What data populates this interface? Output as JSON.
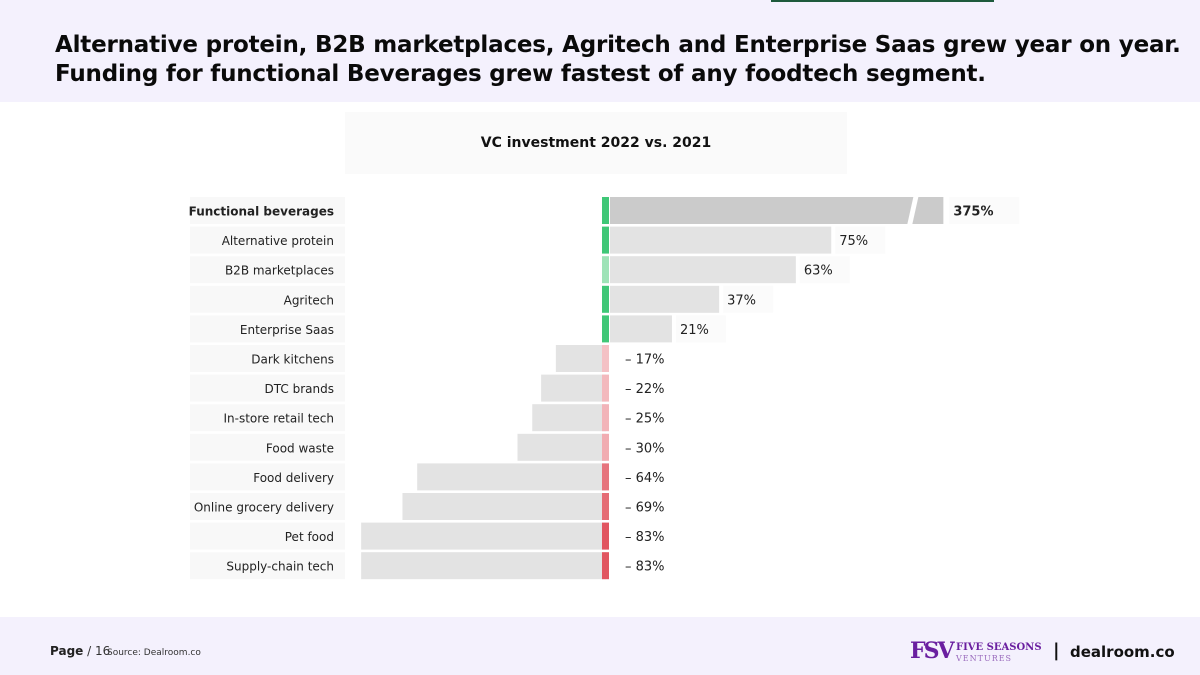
{
  "header": {
    "headline_line1": "Alternative protein, B2B marketplaces, Agritech and Enterprise Saas grew year on year.",
    "headline_line2": "Funding for functional Beverages grew fastest of any foodtech segment."
  },
  "chart_data": {
    "type": "bar",
    "orientation": "horizontal-diverging",
    "title": "VC investment 2022 vs. 2021",
    "categories": [
      "Functional beverages",
      "Alternative protein",
      "B2B marketplaces",
      "Agritech",
      "Enterprise Saas",
      "Dark kitchens",
      "DTC brands",
      "In-store retail tech",
      "Food waste",
      "Food delivery",
      "Online grocery delivery",
      "Pet food",
      "Supply-chain tech"
    ],
    "values": [
      375,
      75,
      63,
      37,
      21,
      -17,
      -22,
      -25,
      -30,
      -64,
      -69,
      -83,
      -83
    ],
    "labels": [
      "375%",
      "75%",
      "63%",
      "37%",
      "21%",
      "– 17%",
      "– 22%",
      "– 25%",
      "– 30%",
      "– 64%",
      "– 69%",
      "– 83%",
      "– 83%"
    ],
    "highlighted": "Functional beverages",
    "axis_break": true,
    "unit": "%"
  },
  "colors": {
    "positive_marker": "#3fc777",
    "positive_marker_light": "#9ee3b7",
    "negative_marker_light": "#f5c4c8",
    "negative_marker_strong": "#e0525d",
    "bar_fill": "#e3e3e3",
    "highlight_bar_fill": "#cbcbcb"
  },
  "footer": {
    "page_label": "Page",
    "page_number": "/ 16",
    "source": "Source: Dealroom.co",
    "brand_mark": "FSV",
    "brand_name": "FIVE SEASONS",
    "brand_sub": "VENTURES",
    "separator": "|",
    "partner": "dealroom.co"
  }
}
